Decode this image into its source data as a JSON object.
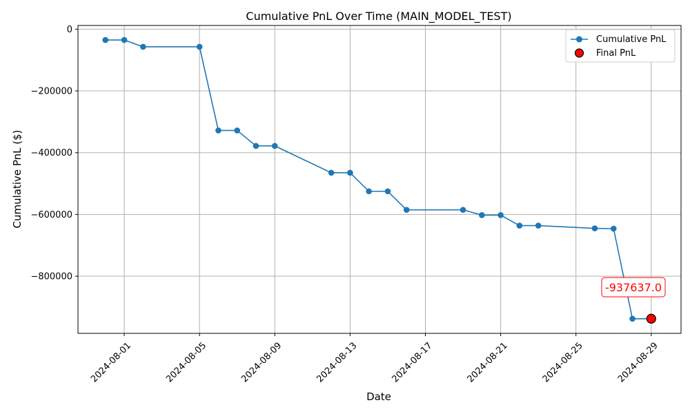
{
  "chart_data": {
    "type": "line",
    "title": "Cumulative PnL Over Time (MAIN_MODEL_TEST)",
    "xlabel": "Date",
    "ylabel": "Cumulative PnL ($)",
    "xlim": [
      "2024-07-29T13:00",
      "2024-08-30T14:00"
    ],
    "ylim": [
      -985000,
      12000
    ],
    "grid": true,
    "legend_placement": "top-right",
    "x_ticks": [
      "2024-08-01",
      "2024-08-05",
      "2024-08-09",
      "2024-08-13",
      "2024-08-17",
      "2024-08-21",
      "2024-08-25",
      "2024-08-29"
    ],
    "y_ticks": [
      0,
      -200000,
      -400000,
      -600000,
      -800000
    ],
    "y_tick_labels": [
      "0",
      "−200000",
      "−400000",
      "−600000",
      "−800000"
    ],
    "series": [
      {
        "name": "Cumulative PnL",
        "color": "#1f77b4",
        "marker": "circle",
        "x": [
          "2024-07-31",
          "2024-08-01",
          "2024-08-02",
          "2024-08-05",
          "2024-08-06",
          "2024-08-07",
          "2024-08-08",
          "2024-08-09",
          "2024-08-12",
          "2024-08-13",
          "2024-08-14",
          "2024-08-15",
          "2024-08-16",
          "2024-08-19",
          "2024-08-20",
          "2024-08-21",
          "2024-08-22",
          "2024-08-23",
          "2024-08-26",
          "2024-08-27",
          "2024-08-28",
          "2024-08-29"
        ],
        "y": [
          -35000,
          -35000,
          -57000,
          -57000,
          -328000,
          -328000,
          -378000,
          -378000,
          -465000,
          -465000,
          -525000,
          -525000,
          -585000,
          -585000,
          -602000,
          -602000,
          -636000,
          -636000,
          -645000,
          -646000,
          -937637,
          -937637
        ]
      }
    ],
    "final_point": {
      "name": "Final PnL",
      "x": "2024-08-29",
      "y": -937637.0,
      "color": "#ff0000",
      "label": "-937637.0"
    }
  }
}
